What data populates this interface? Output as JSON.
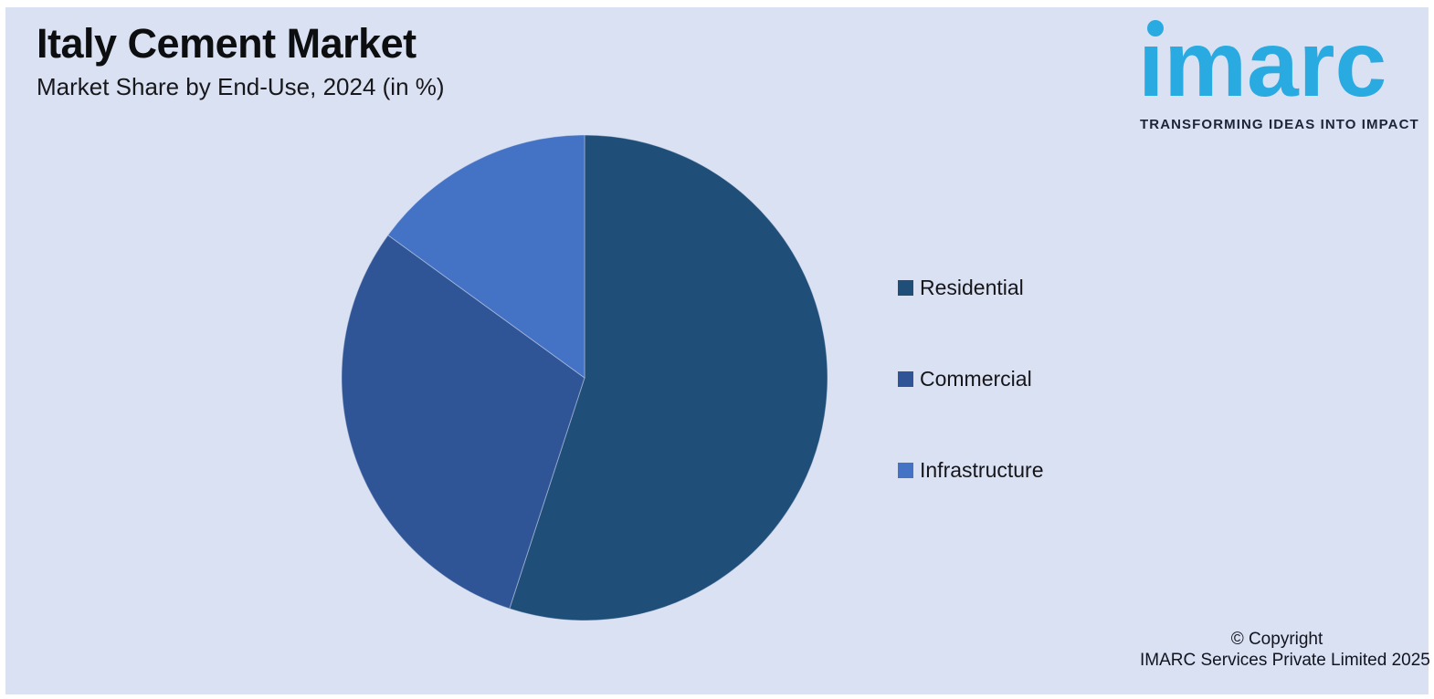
{
  "page": {
    "background_color": "#ffffff",
    "canvas_color": "#d9e1f2"
  },
  "header": {
    "title": "Italy Cement Market",
    "subtitle": "Market Share by End-Use, 2024 (in %)"
  },
  "logo": {
    "wordmark": "imarc",
    "wordmark_display": "ımarc",
    "tagline": "TRANSFORMING IDEAS INTO IMPACT",
    "brand_color": "#29abe2",
    "tagline_color": "#1b2438"
  },
  "chart_data": {
    "type": "pie",
    "title": "Italy Cement Market",
    "subtitle": "Market Share by End-Use, 2024 (in %)",
    "unit": "%",
    "start_angle_deg": 0,
    "direction": "clockwise",
    "legend_position": "right",
    "grid": false,
    "data_labels_shown": false,
    "slices": [
      {
        "label": "Residential",
        "value": 55,
        "color": "#1f4e79"
      },
      {
        "label": "Commercial",
        "value": 30,
        "color": "#2f5597"
      },
      {
        "label": "Infrastructure",
        "value": 15,
        "color": "#4472c4"
      }
    ]
  },
  "footer": {
    "line1": "© Copyright",
    "line2": "IMARC Services Private Limited 2025"
  }
}
